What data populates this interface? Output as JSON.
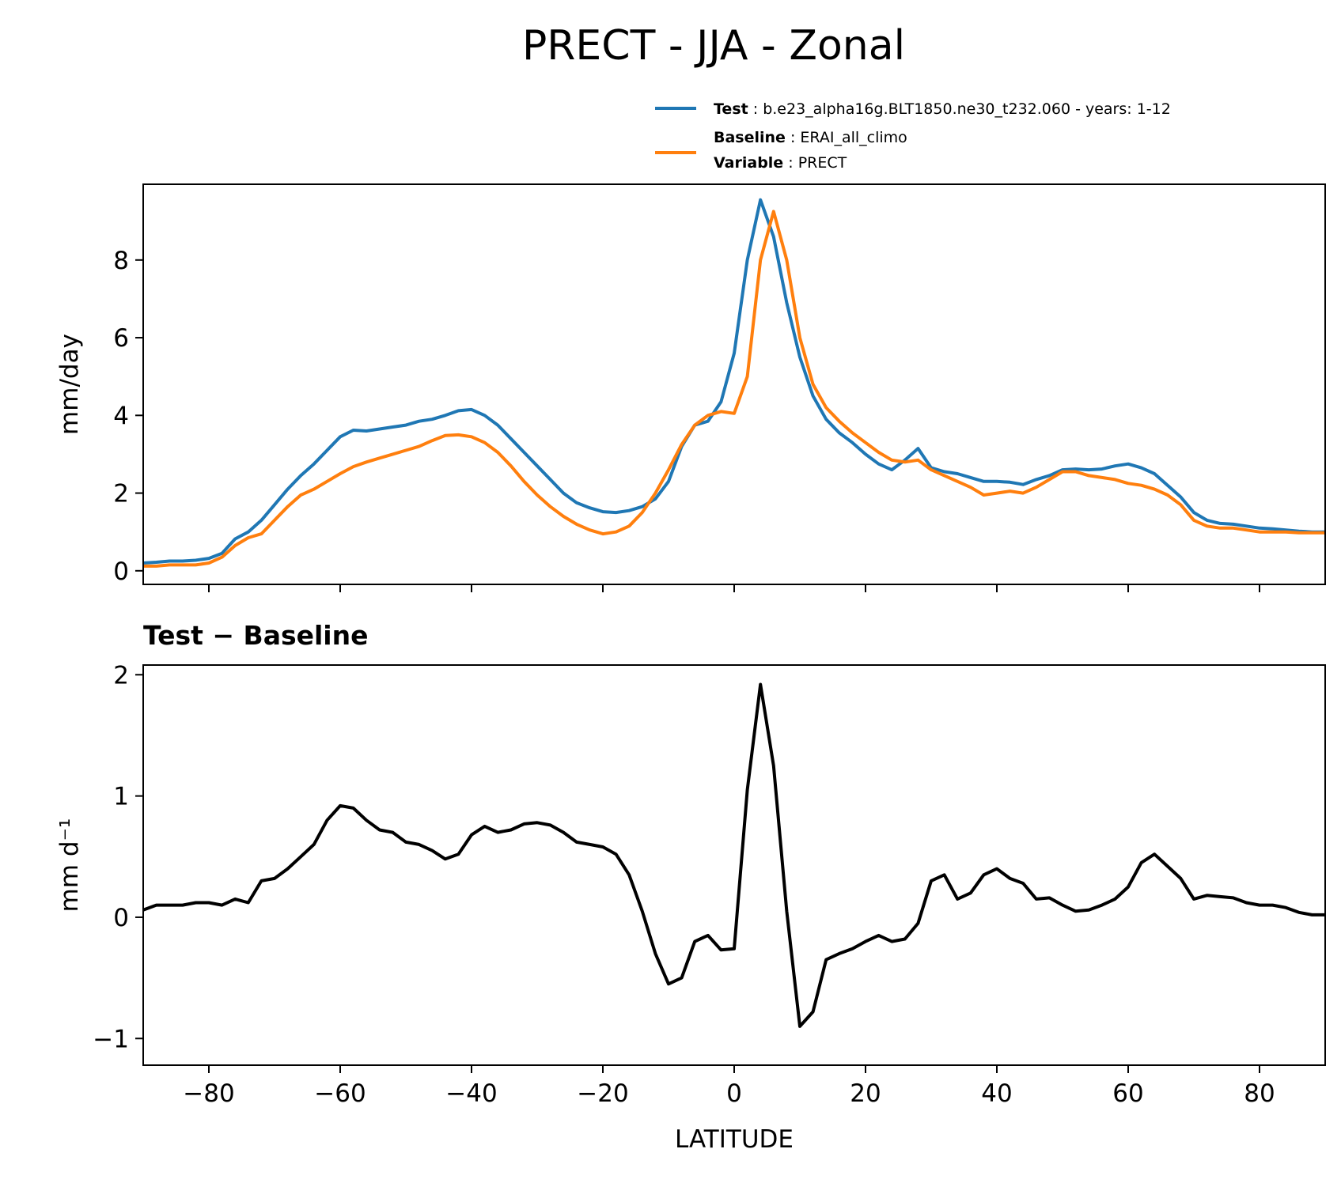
{
  "chart_data": {
    "title": "PRECT - JJA - Zonal",
    "legend": {
      "placement": "top-right, above upper panel",
      "entries": [
        {
          "color": "#1f77b4",
          "lines": [
            {
              "key": "Test",
              "value": "b.e23_alpha16g.BLT1850.ne30_t232.060 - years: 1-12"
            }
          ]
        },
        {
          "color": "#ff7f0e",
          "lines": [
            {
              "key": "Baseline",
              "value": "ERAI_all_climo"
            },
            {
              "key": "Variable",
              "value": "PRECT"
            }
          ]
        }
      ]
    },
    "panels": [
      {
        "type": "line",
        "title": "",
        "xlabel": "",
        "ylabel": "mm/day",
        "xlim": [
          -90,
          90
        ],
        "ylim": [
          -0.35,
          9.95
        ],
        "xticks": [
          -80,
          -60,
          -40,
          -20,
          0,
          20,
          40,
          60,
          80
        ],
        "xtick_labels_visible": false,
        "yticks": [
          0,
          2,
          4,
          6,
          8
        ],
        "ytick_labels": [
          "0",
          "2",
          "4",
          "6",
          "8"
        ],
        "series": [
          {
            "name": "Test",
            "color": "#1f77b4",
            "x": [
              -90,
              -88,
              -86,
              -84,
              -82,
              -80,
              -78,
              -76,
              -74,
              -72,
              -70,
              -68,
              -66,
              -64,
              -62,
              -60,
              -58,
              -56,
              -54,
              -52,
              -50,
              -48,
              -46,
              -44,
              -42,
              -40,
              -38,
              -36,
              -34,
              -32,
              -30,
              -28,
              -26,
              -24,
              -22,
              -20,
              -18,
              -16,
              -14,
              -12,
              -10,
              -8,
              -6,
              -4,
              -2,
              0,
              2,
              4,
              6,
              8,
              10,
              12,
              14,
              16,
              18,
              20,
              22,
              24,
              26,
              28,
              30,
              32,
              34,
              36,
              38,
              40,
              42,
              44,
              46,
              48,
              50,
              52,
              54,
              56,
              58,
              60,
              62,
              64,
              66,
              68,
              70,
              72,
              74,
              76,
              78,
              80,
              82,
              84,
              86,
              88,
              90
            ],
            "y": [
              0.2,
              0.22,
              0.25,
              0.25,
              0.27,
              0.32,
              0.45,
              0.82,
              1.0,
              1.3,
              1.7,
              2.1,
              2.45,
              2.75,
              3.1,
              3.45,
              3.62,
              3.6,
              3.65,
              3.7,
              3.75,
              3.85,
              3.9,
              4.0,
              4.12,
              4.15,
              4.0,
              3.75,
              3.4,
              3.05,
              2.7,
              2.35,
              2.0,
              1.75,
              1.62,
              1.52,
              1.5,
              1.55,
              1.65,
              1.85,
              2.3,
              3.2,
              3.75,
              3.85,
              4.35,
              5.6,
              8.0,
              9.55,
              8.6,
              6.9,
              5.5,
              4.5,
              3.9,
              3.55,
              3.3,
              3.0,
              2.75,
              2.6,
              2.85,
              3.15,
              2.65,
              2.55,
              2.5,
              2.4,
              2.3,
              2.3,
              2.28,
              2.22,
              2.35,
              2.45,
              2.6,
              2.62,
              2.6,
              2.62,
              2.7,
              2.75,
              2.65,
              2.5,
              2.2,
              1.9,
              1.5,
              1.3,
              1.22,
              1.2,
              1.15,
              1.1,
              1.08,
              1.05,
              1.02,
              1.0,
              1.0
            ]
          },
          {
            "name": "Baseline",
            "color": "#ff7f0e",
            "x": [
              -90,
              -88,
              -86,
              -84,
              -82,
              -80,
              -78,
              -76,
              -74,
              -72,
              -70,
              -68,
              -66,
              -64,
              -62,
              -60,
              -58,
              -56,
              -54,
              -52,
              -50,
              -48,
              -46,
              -44,
              -42,
              -40,
              -38,
              -36,
              -34,
              -32,
              -30,
              -28,
              -26,
              -24,
              -22,
              -20,
              -18,
              -16,
              -14,
              -12,
              -10,
              -8,
              -6,
              -4,
              -2,
              0,
              2,
              4,
              6,
              8,
              10,
              12,
              14,
              16,
              18,
              20,
              22,
              24,
              26,
              28,
              30,
              32,
              34,
              36,
              38,
              40,
              42,
              44,
              46,
              48,
              50,
              52,
              54,
              56,
              58,
              60,
              62,
              64,
              66,
              68,
              70,
              72,
              74,
              76,
              78,
              80,
              82,
              84,
              86,
              88,
              90
            ],
            "y": [
              0.12,
              0.12,
              0.15,
              0.15,
              0.15,
              0.2,
              0.35,
              0.65,
              0.85,
              0.95,
              1.3,
              1.65,
              1.95,
              2.1,
              2.3,
              2.5,
              2.68,
              2.8,
              2.9,
              3.0,
              3.1,
              3.2,
              3.35,
              3.48,
              3.5,
              3.45,
              3.3,
              3.05,
              2.7,
              2.3,
              1.95,
              1.65,
              1.4,
              1.2,
              1.05,
              0.95,
              1.0,
              1.15,
              1.5,
              2.0,
              2.6,
              3.25,
              3.75,
              4.0,
              4.1,
              4.05,
              5.0,
              8.0,
              9.25,
              8.0,
              6.0,
              4.8,
              4.2,
              3.85,
              3.55,
              3.3,
              3.05,
              2.85,
              2.8,
              2.85,
              2.6,
              2.45,
              2.3,
              2.15,
              1.95,
              2.0,
              2.05,
              2.0,
              2.15,
              2.35,
              2.55,
              2.55,
              2.45,
              2.4,
              2.35,
              2.25,
              2.2,
              2.1,
              1.95,
              1.7,
              1.3,
              1.15,
              1.1,
              1.1,
              1.05,
              1.0,
              1.0,
              1.0,
              0.98,
              0.98,
              0.98
            ]
          }
        ]
      },
      {
        "type": "line",
        "title": "Test − Baseline",
        "xlabel": "LATITUDE",
        "ylabel": "mm d⁻¹",
        "xlim": [
          -90,
          90
        ],
        "ylim": [
          -1.22,
          2.08
        ],
        "xticks": [
          -80,
          -60,
          -40,
          -20,
          0,
          20,
          40,
          60,
          80
        ],
        "xtick_labels": [
          "−80",
          "−60",
          "−40",
          "−20",
          "0",
          "20",
          "40",
          "60",
          "80"
        ],
        "yticks": [
          -1,
          0,
          1,
          2
        ],
        "ytick_labels": [
          "−1",
          "0",
          "1",
          "2"
        ],
        "series": [
          {
            "name": "Test − Baseline",
            "color": "#000000",
            "x": [
              -90,
              -88,
              -86,
              -84,
              -82,
              -80,
              -78,
              -76,
              -74,
              -72,
              -70,
              -68,
              -66,
              -64,
              -62,
              -60,
              -58,
              -56,
              -54,
              -52,
              -50,
              -48,
              -46,
              -44,
              -42,
              -40,
              -38,
              -36,
              -34,
              -32,
              -30,
              -28,
              -26,
              -24,
              -22,
              -20,
              -18,
              -16,
              -14,
              -12,
              -10,
              -8,
              -6,
              -4,
              -2,
              0,
              2,
              4,
              6,
              8,
              10,
              12,
              14,
              16,
              18,
              20,
              22,
              24,
              26,
              28,
              30,
              32,
              34,
              36,
              38,
              40,
              42,
              44,
              46,
              48,
              50,
              52,
              54,
              56,
              58,
              60,
              62,
              64,
              66,
              68,
              70,
              72,
              74,
              76,
              78,
              80,
              82,
              84,
              86,
              88,
              90
            ],
            "y": [
              0.06,
              0.1,
              0.1,
              0.1,
              0.12,
              0.12,
              0.1,
              0.15,
              0.12,
              0.3,
              0.32,
              0.4,
              0.5,
              0.6,
              0.8,
              0.92,
              0.9,
              0.8,
              0.72,
              0.7,
              0.62,
              0.6,
              0.55,
              0.48,
              0.52,
              0.68,
              0.75,
              0.7,
              0.72,
              0.77,
              0.78,
              0.76,
              0.7,
              0.62,
              0.6,
              0.58,
              0.52,
              0.35,
              0.05,
              -0.3,
              -0.55,
              -0.5,
              -0.2,
              -0.15,
              -0.27,
              -0.26,
              1.05,
              1.92,
              1.25,
              0.05,
              -0.9,
              -0.78,
              -0.35,
              -0.3,
              -0.26,
              -0.2,
              -0.15,
              -0.2,
              -0.18,
              -0.05,
              0.3,
              0.35,
              0.15,
              0.2,
              0.35,
              0.4,
              0.32,
              0.28,
              0.15,
              0.16,
              0.1,
              0.05,
              0.06,
              0.1,
              0.15,
              0.25,
              0.45,
              0.52,
              0.42,
              0.32,
              0.15,
              0.18,
              0.17,
              0.16,
              0.12,
              0.1,
              0.1,
              0.08,
              0.04,
              0.02,
              0.02
            ]
          }
        ]
      }
    ]
  }
}
